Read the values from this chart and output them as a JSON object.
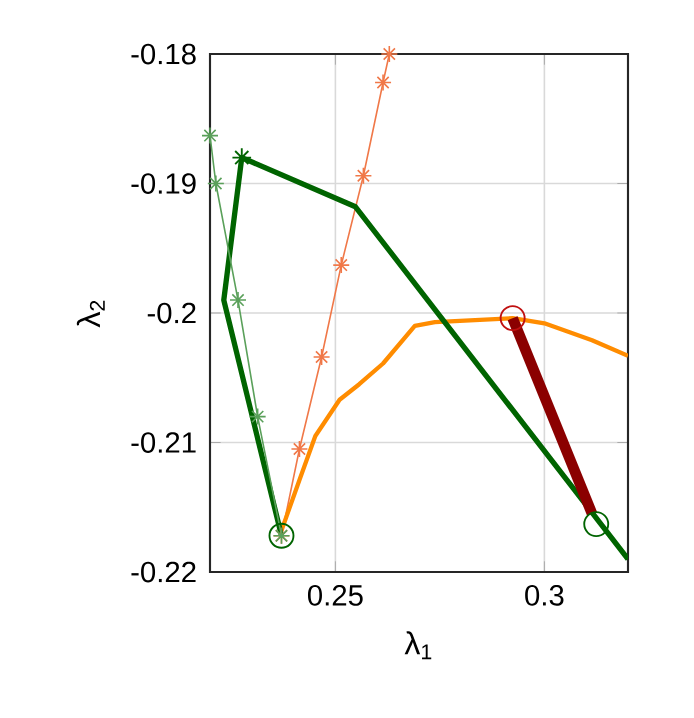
{
  "chart_data": {
    "type": "line",
    "xlabel": "λ$_{1}$",
    "ylabel": "λ$_{2}$",
    "xlim": [
      0.22,
      0.32
    ],
    "ylim": [
      -0.22,
      -0.18
    ],
    "xticks": [
      0.25,
      0.3
    ],
    "yticks": [
      {
        "value": -0.22,
        "label": "-0.22"
      },
      {
        "value": -0.21,
        "label": "-0.21"
      },
      {
        "value": -0.2,
        "label": "-0.2"
      },
      {
        "value": -0.19,
        "label": "-0.19"
      },
      {
        "value": -0.18,
        "label": "-0.18"
      }
    ],
    "grid": true,
    "series": [
      {
        "color": "#f07848",
        "marker": "cross",
        "x": [
          0.2371,
          0.2414,
          0.2467,
          0.2514,
          0.2567,
          0.2614,
          0.2629
        ],
        "values": [
          -0.2172,
          -0.2105,
          -0.2034,
          -0.1963,
          -0.1894,
          -0.1822,
          -0.18
        ]
      },
      {
        "color": "#ff8c00",
        "x": [
          0.2371,
          0.2414,
          0.2452,
          0.251,
          0.2557,
          0.2614,
          0.269,
          0.2738,
          0.2924,
          0.3,
          0.3114,
          0.32
        ],
        "values": [
          -0.2168,
          -0.2129,
          -0.2095,
          -0.2067,
          -0.2055,
          -0.2039,
          -0.201,
          -0.2007,
          -0.2004,
          -0.2008,
          -0.2021,
          -0.2033
        ]
      },
      {
        "color": "#006400",
        "x": [
          0.2371,
          0.2233,
          0.2276,
          0.2548,
          0.32
        ],
        "values": [
          -0.2172,
          -0.199,
          -0.188,
          -0.1918,
          -0.219
        ]
      },
      {
        "color": "#8b0000",
        "x": [
          0.2924,
          0.3114
        ],
        "values": [
          -0.2004,
          -0.2155
        ]
      },
      {
        "color": "#5aa05a",
        "marker": "cross",
        "x": [
          0.22,
          0.2214,
          0.2267,
          0.2314,
          0.2371
        ],
        "values": [
          -0.1863,
          -0.19,
          -0.199,
          -0.208,
          -0.2172
        ]
      },
      {
        "type": "scatter",
        "color": "#006400",
        "marker": "cross",
        "x": [
          0.2276
        ],
        "values": [
          -0.188
        ]
      },
      {
        "type": "scatter",
        "color": "#006400",
        "marker": "circle",
        "x": [
          0.2371,
          0.3124
        ],
        "values": [
          -0.2172,
          -0.2163
        ]
      },
      {
        "type": "scatter",
        "color": "#c01010",
        "marker": "circle",
        "x": [
          0.2924
        ],
        "values": [
          -0.2004
        ]
      }
    ]
  }
}
